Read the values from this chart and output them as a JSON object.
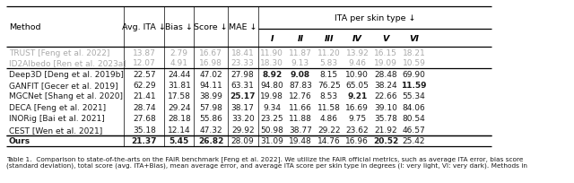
{
  "caption": "Table 1.  Comparison to state-of-the-arts on the FAIR benchmark [Feng et al. 2022]. We utilize the FAIR official metrics, such as average ITA error, bias score\n(standard deviation), total score (avg. ITA+Bias), mean average error, and average ITA score per skin type in degrees (I: very light, VI: very dark). Methods in",
  "columns": [
    "Method",
    "Avg. ITA ↓",
    "Bias ↓",
    "Score ↓",
    "MAE ↓",
    "I",
    "II",
    "III",
    "IV",
    "V",
    "VI"
  ],
  "col_group_header": "ITA per skin type ↓",
  "rows": [
    {
      "method": "TRUST [Feng et al. 2022]",
      "values": [
        "13.87",
        "2.79",
        "16.67",
        "18.41",
        "11.90",
        "11.87",
        "11.20",
        "13.92",
        "16.15",
        "18.21"
      ],
      "gray": true,
      "bold_vals": []
    },
    {
      "method": "ID2Albedo [Ren et al. 2023a]",
      "values": [
        "12.07",
        "4.91",
        "16.98",
        "23.33",
        "18.30",
        "9.13",
        "5.83",
        "9.46",
        "19.09",
        "10.59"
      ],
      "gray": true,
      "bold_vals": []
    },
    {
      "method": "Deep3D [Deng et al. 2019b]",
      "values": [
        "22.57",
        "24.44",
        "47.02",
        "27.98",
        "8.92",
        "9.08",
        "8.15",
        "10.90",
        "28.48",
        "69.90"
      ],
      "gray": false,
      "bold_vals": [
        "8.92",
        "9.08"
      ]
    },
    {
      "method": "GANFIT [Gecer et al. 2019]",
      "values": [
        "62.29",
        "31.81",
        "94.11",
        "63.31",
        "94.80",
        "87.83",
        "76.25",
        "65.05",
        "38.24",
        "11.59"
      ],
      "gray": false,
      "bold_vals": [
        "11.59"
      ]
    },
    {
      "method": "MGCNet [Shang et al. 2020]",
      "values": [
        "21.41",
        "17.58",
        "38.99",
        "25.17",
        "19.98",
        "12.76",
        "8.53",
        "9.21",
        "22.66",
        "55.34"
      ],
      "gray": false,
      "bold_vals": [
        "25.17",
        "9.21"
      ]
    },
    {
      "method": "DECA [Feng et al. 2021]",
      "values": [
        "28.74",
        "29.24",
        "57.98",
        "38.17",
        "9.34",
        "11.66",
        "11.58",
        "16.69",
        "39.10",
        "84.06"
      ],
      "gray": false,
      "bold_vals": []
    },
    {
      "method": "INORig [Bai et al. 2021]",
      "values": [
        "27.68",
        "28.18",
        "55.86",
        "33.20",
        "23.25",
        "11.88",
        "4.86",
        "9.75",
        "35.78",
        "80.54"
      ],
      "gray": false,
      "bold_vals": []
    },
    {
      "method": "CEST [Wen et al. 2021]",
      "values": [
        "35.18",
        "12.14",
        "47.32",
        "29.92",
        "50.98",
        "38.77",
        "29.22",
        "23.62",
        "21.92",
        "46.57"
      ],
      "gray": false,
      "bold_vals": []
    },
    {
      "method": "Ours",
      "values": [
        "21.37",
        "5.45",
        "26.82",
        "28.09",
        "31.09",
        "19.48",
        "14.76",
        "16.96",
        "20.52",
        "25.42"
      ],
      "gray": false,
      "bold_vals": [
        "21.37",
        "5.45",
        "26.82",
        "20.52"
      ]
    }
  ],
  "bg_color": "#ffffff",
  "text_color": "#1a1a1a",
  "gray_text_color": "#aaaaaa",
  "figsize": [
    6.4,
    2.05
  ],
  "dpi": 100
}
